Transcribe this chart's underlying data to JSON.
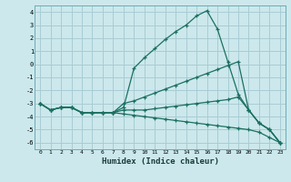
{
  "xlabel": "Humidex (Indice chaleur)",
  "xlim": [
    -0.5,
    23.5
  ],
  "ylim": [
    -6.5,
    4.5
  ],
  "yticks": [
    -6,
    -5,
    -4,
    -3,
    -2,
    -1,
    0,
    1,
    2,
    3,
    4
  ],
  "xticks": [
    0,
    1,
    2,
    3,
    4,
    5,
    6,
    7,
    8,
    9,
    10,
    11,
    12,
    13,
    14,
    15,
    16,
    17,
    18,
    19,
    20,
    21,
    22,
    23
  ],
  "bg_color": "#cce8ec",
  "grid_color": "#a8ccd4",
  "line_color": "#1a7060",
  "y_max": [
    -3.0,
    -3.5,
    -3.3,
    -3.3,
    -3.7,
    -3.7,
    -3.7,
    -3.7,
    -3.3,
    -0.3,
    0.5,
    1.2,
    1.9,
    2.5,
    3.0,
    3.7,
    4.1,
    2.7,
    0.2,
    -2.3,
    -3.5,
    -4.5,
    -5.0,
    -6.0
  ],
  "y_mid": [
    -3.0,
    -3.5,
    -3.3,
    -3.3,
    -3.7,
    -3.7,
    -3.7,
    -3.7,
    -3.0,
    -2.8,
    -2.5,
    -2.2,
    -1.9,
    -1.6,
    -1.3,
    -1.0,
    -0.7,
    -0.4,
    -0.1,
    0.2,
    -3.5,
    -4.5,
    -5.0,
    -6.0
  ],
  "y_low": [
    -3.0,
    -3.5,
    -3.3,
    -3.3,
    -3.7,
    -3.7,
    -3.7,
    -3.7,
    -3.5,
    -3.5,
    -3.5,
    -3.4,
    -3.3,
    -3.2,
    -3.1,
    -3.0,
    -2.9,
    -2.8,
    -2.7,
    -2.5,
    -3.5,
    -4.5,
    -5.0,
    -6.0
  ],
  "y_bot": [
    -3.0,
    -3.5,
    -3.3,
    -3.3,
    -3.7,
    -3.7,
    -3.7,
    -3.7,
    -3.8,
    -3.9,
    -4.0,
    -4.1,
    -4.2,
    -4.3,
    -4.4,
    -4.5,
    -4.6,
    -4.7,
    -4.8,
    -4.9,
    -5.0,
    -5.2,
    -5.6,
    -6.0
  ]
}
